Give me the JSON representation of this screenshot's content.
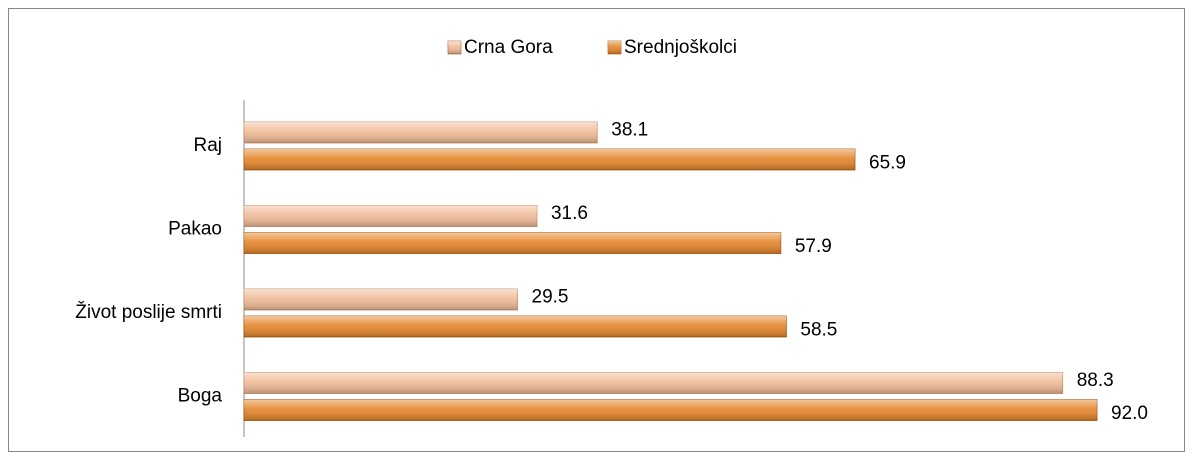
{
  "chart_data": {
    "type": "bar",
    "orientation": "horizontal",
    "categories": [
      "Raj",
      "Pakao",
      "Život poslije smrti",
      "Boga"
    ],
    "series": [
      {
        "name": "Crna Gora",
        "color": "#f0bb96",
        "values": [
          38.1,
          31.6,
          29.5,
          88.3
        ],
        "value_labels": [
          "38.1",
          "31.6",
          "29.5",
          "88.3"
        ]
      },
      {
        "name": "Srednjoškolci",
        "color": "#e5852a",
        "values": [
          65.9,
          57.9,
          58.5,
          92.0
        ],
        "value_labels": [
          "65.9",
          "57.9",
          "58.5",
          "92.0"
        ]
      }
    ],
    "legend": "top"
  }
}
